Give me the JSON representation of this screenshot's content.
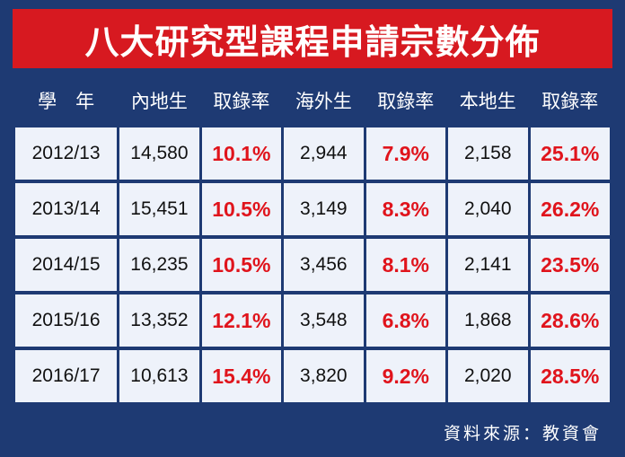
{
  "title": "八大研究型課程申請宗數分佈",
  "columns": [
    "學　年",
    "內地生",
    "取錄率",
    "海外生",
    "取錄率",
    "本地生",
    "取錄率"
  ],
  "rows": [
    [
      "2012/13",
      "14,580",
      "10.1%",
      "2,944",
      "7.9%",
      "2,158",
      "25.1%"
    ],
    [
      "2013/14",
      "15,451",
      "10.5%",
      "3,149",
      "8.3%",
      "2,040",
      "26.2%"
    ],
    [
      "2014/15",
      "16,235",
      "10.5%",
      "3,456",
      "8.1%",
      "2,141",
      "23.5%"
    ],
    [
      "2015/16",
      "13,352",
      "12.1%",
      "3,548",
      "6.8%",
      "1,868",
      "28.6%"
    ],
    [
      "2016/17",
      "10,613",
      "15.4%",
      "3,820",
      "9.2%",
      "2,020",
      "28.5%"
    ]
  ],
  "source": "資料來源：教資會",
  "colors": {
    "background": "#1e3a73",
    "title_bar": "#d71920",
    "cell": "#eef2fa",
    "rate_text": "#e0141c"
  }
}
